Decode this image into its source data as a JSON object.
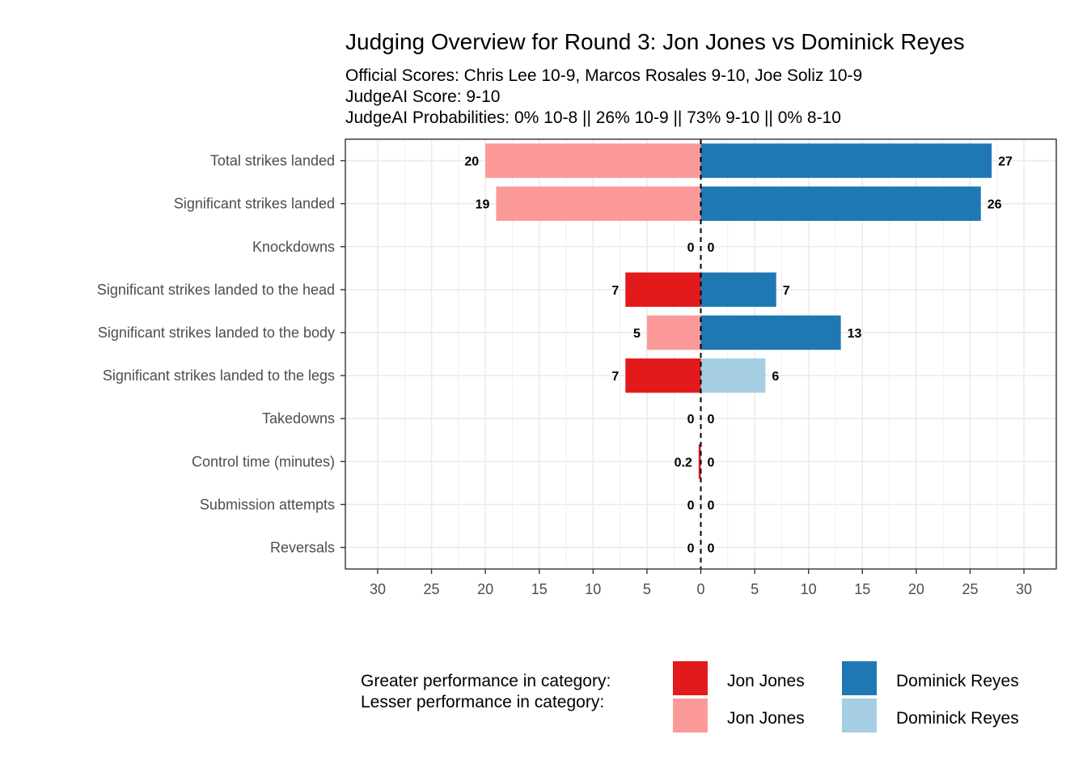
{
  "chart_data": {
    "type": "bar",
    "orientation": "horizontal-diverging",
    "title": "Judging Overview for Round 3: Jon Jones vs Dominick Reyes",
    "subtitle_lines": [
      "Official Scores: Chris Lee 10-9, Marcos Rosales 9-10, Joe Soliz 10-9",
      "JudgeAI Score: 9-10",
      "JudgeAI Probabilities: 0% 10-8 || 26% 10-9 || 73% 9-10 || 0% 8-10"
    ],
    "categories": [
      "Total strikes landed",
      "Significant strikes landed",
      "Knockdowns",
      "Significant strikes landed to the head",
      "Significant strikes landed to the body",
      "Significant strikes landed to the legs",
      "Takedowns",
      "Control time (minutes)",
      "Submission attempts",
      "Reversals"
    ],
    "series": [
      {
        "name": "Jon Jones",
        "side": "left",
        "values": [
          20,
          19,
          0,
          7,
          5,
          7,
          0,
          0.2,
          0,
          0
        ],
        "labels": [
          "20",
          "19",
          "0",
          "7",
          "5",
          "7",
          "0",
          "0.2",
          "0",
          "0"
        ],
        "greater": [
          false,
          false,
          false,
          true,
          false,
          true,
          false,
          true,
          false,
          false
        ]
      },
      {
        "name": "Dominick Reyes",
        "side": "right",
        "values": [
          27,
          26,
          0,
          7,
          13,
          6,
          0,
          0,
          0,
          0
        ],
        "labels": [
          "27",
          "26",
          "0",
          "7",
          "13",
          "6",
          "0",
          "0",
          "0",
          "0"
        ],
        "greater": [
          true,
          true,
          false,
          true,
          true,
          false,
          false,
          false,
          false,
          false
        ]
      }
    ],
    "xlim": [
      -33,
      33
    ],
    "x_ticks": [
      -30,
      -25,
      -20,
      -15,
      -10,
      -5,
      0,
      5,
      10,
      15,
      20,
      25,
      30
    ],
    "x_tick_labels": [
      "30",
      "25",
      "20",
      "15",
      "10",
      "5",
      "0",
      "5",
      "10",
      "15",
      "20",
      "25",
      "30"
    ],
    "grid": true,
    "zero_line": "dashed",
    "colors": {
      "jones_greater": "#e31a1c",
      "jones_lesser": "#fb9a99",
      "reyes_greater": "#1f78b4",
      "reyes_lesser": "#a6cee3",
      "grid": "#ebebeb",
      "panel_border": "#333333"
    },
    "legend": {
      "placement": "bottom",
      "row_labels": [
        "Greater performance in category:",
        "Lesser performance in category:"
      ],
      "entries": [
        {
          "name": "Jon Jones",
          "row": "greater",
          "color": "#e31a1c"
        },
        {
          "name": "Jon Jones",
          "row": "lesser",
          "color": "#fb9a99"
        },
        {
          "name": "Dominick Reyes",
          "row": "greater",
          "color": "#1f78b4"
        },
        {
          "name": "Dominick Reyes",
          "row": "lesser",
          "color": "#a6cee3"
        }
      ]
    }
  }
}
